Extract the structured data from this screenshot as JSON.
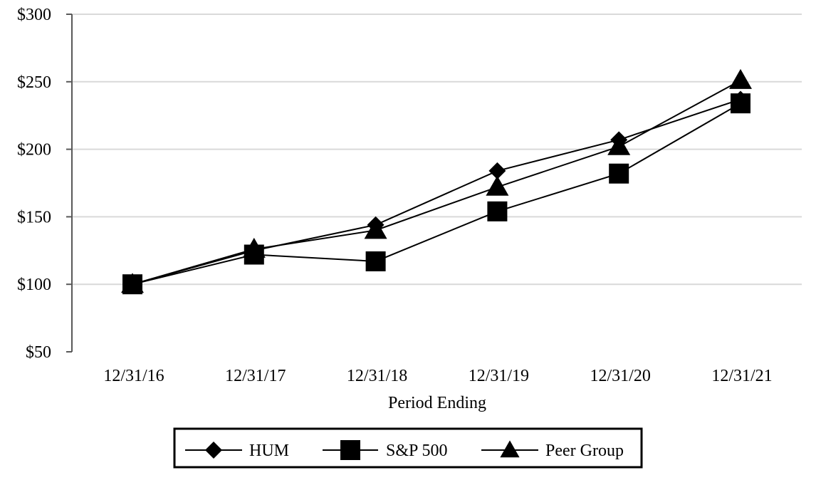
{
  "chart_data": {
    "type": "line",
    "title": "",
    "xlabel": "Period Ending",
    "ylabel": "",
    "categories": [
      "12/31/16",
      "12/31/17",
      "12/31/18",
      "12/31/19",
      "12/31/20",
      "12/31/21"
    ],
    "yticks": [
      50,
      100,
      150,
      200,
      250,
      300
    ],
    "ytick_labels": [
      "$50",
      "$100",
      "$150",
      "$200",
      "$250",
      "$300"
    ],
    "ylim": [
      50,
      300
    ],
    "grid": "horizontal",
    "legend_position": "bottom-center",
    "series": [
      {
        "name": "HUM",
        "marker": "diamond",
        "values": [
          100,
          125,
          144,
          184,
          207,
          237
        ]
      },
      {
        "name": "S&P 500",
        "marker": "square",
        "values": [
          100,
          122,
          117,
          154,
          182,
          234
        ]
      },
      {
        "name": "Peer Group",
        "marker": "triangle",
        "values": [
          100,
          126,
          140,
          172,
          202,
          251
        ]
      }
    ],
    "colors": {
      "line": "#000000",
      "grid": "#d9d9d9",
      "axis": "#595959"
    }
  }
}
